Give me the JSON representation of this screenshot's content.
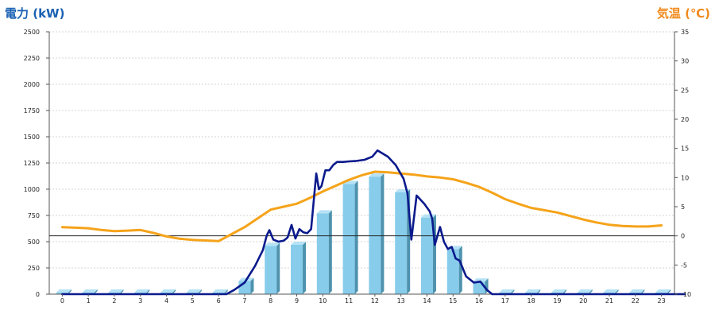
{
  "chart_data": {
    "type": "bar",
    "title_left": "電力 (kW)",
    "title_right": "気温 (℃)",
    "colors": {
      "title_left": "#1b61b3",
      "title_right": "#f08a1c",
      "bar_front": "#87cceb",
      "bar_side": "#4e92ad",
      "bar_top": "#b6e2f5",
      "power_line": "#0b1a8c",
      "temp_line": "#f5a31a"
    },
    "y_left": {
      "min": 0,
      "max": 2500,
      "ticks": [
        0,
        250,
        500,
        750,
        1000,
        1250,
        1500,
        1750,
        2000,
        2250,
        2500
      ]
    },
    "y_right": {
      "min": -10,
      "max": 35,
      "ticks": [
        -10,
        -5,
        0,
        5,
        10,
        15,
        20,
        25,
        30,
        35
      ]
    },
    "grid": true,
    "categories": [
      "0",
      "1",
      "2",
      "3",
      "4",
      "5",
      "6",
      "7",
      "8",
      "9",
      "10",
      "11",
      "12",
      "13",
      "14",
      "15",
      "16",
      "17",
      "18",
      "19",
      "20",
      "21",
      "22",
      "23"
    ],
    "bars": {
      "name": "",
      "values": [
        15,
        15,
        15,
        15,
        15,
        15,
        15,
        125,
        460,
        470,
        770,
        1050,
        1120,
        970,
        730,
        430,
        120,
        15,
        15,
        15,
        15,
        15,
        15,
        15
      ]
    },
    "power_line": {
      "name": "",
      "x": [
        0,
        6.3,
        6.6,
        7,
        7.4,
        7.7,
        7.85,
        7.95,
        8.1,
        8.3,
        8.5,
        8.65,
        8.8,
        8.95,
        9.1,
        9.25,
        9.4,
        9.55,
        9.75,
        9.85,
        9.95,
        10.1,
        10.25,
        10.4,
        10.55,
        10.8,
        11,
        11.3,
        11.6,
        11.9,
        12.1,
        12.3,
        12.5,
        12.8,
        13.1,
        13.25,
        13.4,
        13.6,
        13.9,
        14.1,
        14.2,
        14.3,
        14.5,
        14.65,
        14.8,
        14.95,
        15.1,
        15.25,
        15.5,
        15.8,
        16.05,
        16.3,
        16.5,
        16.6,
        23.9
      ],
      "values": [
        0,
        0,
        40,
        110,
        270,
        420,
        560,
        610,
        520,
        500,
        510,
        540,
        660,
        530,
        620,
        590,
        580,
        620,
        1150,
        1000,
        1030,
        1180,
        1180,
        1230,
        1260,
        1260,
        1265,
        1270,
        1280,
        1310,
        1370,
        1340,
        1310,
        1230,
        1100,
        960,
        520,
        940,
        860,
        790,
        720,
        470,
        640,
        500,
        430,
        450,
        340,
        320,
        170,
        110,
        120,
        40,
        0,
        0,
        0
      ]
    },
    "temp_line": {
      "name": "",
      "x": [
        0,
        0.5,
        1,
        1.5,
        2,
        2.5,
        3,
        3.5,
        4,
        4.5,
        5,
        5.5,
        6,
        6.5,
        7,
        7.5,
        8,
        8.5,
        9,
        9.5,
        10,
        10.5,
        11,
        11.5,
        12,
        12.5,
        13,
        13.5,
        14,
        14.5,
        15,
        15.5,
        16,
        16.5,
        17,
        17.5,
        18,
        18.5,
        19,
        19.5,
        20,
        20.5,
        21,
        21.5,
        22,
        22.5,
        23
      ],
      "values": [
        1.5,
        1.4,
        1.3,
        1.0,
        0.8,
        0.9,
        1.0,
        0.5,
        -0.1,
        -0.5,
        -0.7,
        -0.8,
        -0.9,
        0.3,
        1.5,
        3.0,
        4.5,
        5.0,
        5.5,
        6.5,
        7.6,
        8.6,
        9.6,
        10.4,
        11.0,
        10.9,
        10.7,
        10.5,
        10.2,
        10.0,
        9.7,
        9.1,
        8.4,
        7.4,
        6.3,
        5.5,
        4.8,
        4.4,
        4.0,
        3.4,
        2.8,
        2.3,
        1.9,
        1.7,
        1.6,
        1.6,
        1.8
      ]
    }
  }
}
